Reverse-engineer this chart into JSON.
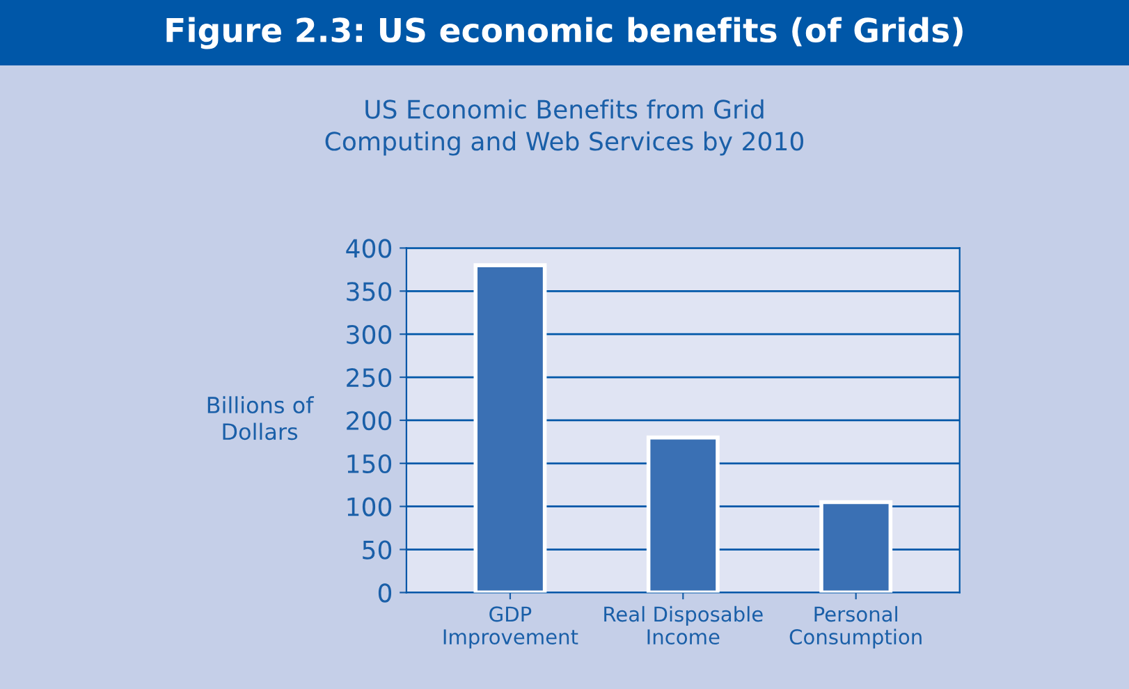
{
  "chart_data": {
    "type": "bar",
    "title": "Figure 2.3: US economic benefits (of Grids)",
    "subtitle": "US Economic Benefits from Grid\nComputing and Web Services by 2010",
    "ylabel": "Billions of\nDollars",
    "categories": [
      "GDP\nImprovement",
      "Real Disposable\nIncome",
      "Personal\nConsumption"
    ],
    "values": [
      380,
      180,
      105
    ],
    "color": "#3a70b4",
    "ylim": [
      0,
      400
    ],
    "yticks": [
      0,
      50,
      100,
      150,
      200,
      250,
      300,
      350,
      400
    ],
    "grid": "y"
  }
}
